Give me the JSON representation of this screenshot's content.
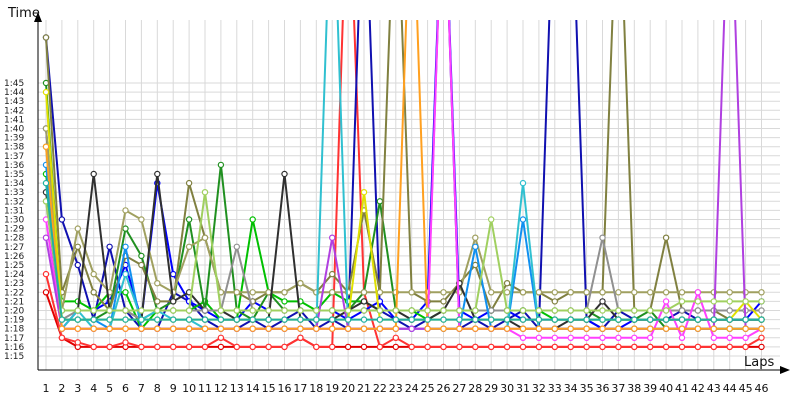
{
  "chart_data": {
    "type": "line",
    "xlabel": "Laps",
    "ylabel": "Time",
    "x": [
      1,
      2,
      3,
      4,
      5,
      6,
      7,
      8,
      9,
      10,
      11,
      12,
      13,
      14,
      15,
      16,
      17,
      18,
      19,
      20,
      21,
      22,
      23,
      24,
      25,
      26,
      27,
      28,
      29,
      30,
      31,
      32,
      33,
      34,
      35,
      36,
      37,
      38,
      39,
      40,
      41,
      42,
      43,
      44,
      45,
      46
    ],
    "y_ticks": [
      "1:15",
      "1:16",
      "1:17",
      "1:18",
      "1:19",
      "1:20",
      "1:21",
      "1:22",
      "1:23",
      "1:24",
      "1:25",
      "1:26",
      "1:27",
      "1:28",
      "1:29",
      "1:30",
      "1:31",
      "1:32",
      "1:33",
      "1:34",
      "1:35",
      "1:36",
      "1:37",
      "1:38",
      "1:39",
      "1:40",
      "1:41",
      "1:42",
      "1:43",
      "1:44",
      "1:45"
    ],
    "ylim_seconds": [
      74,
      110
    ],
    "grid": true,
    "series": [
      {
        "color": "#e00000",
        "values": [
          82,
          77,
          76,
          76,
          76,
          76,
          76,
          76,
          76,
          76,
          76,
          76,
          76,
          76,
          76,
          76,
          77,
          76,
          76,
          76,
          76,
          76,
          76,
          76,
          76,
          76,
          76,
          76,
          76,
          76,
          76,
          76,
          76,
          76,
          76,
          76,
          76,
          76,
          76,
          76,
          76,
          76,
          76,
          76,
          76,
          76
        ]
      },
      {
        "color": "#ff3333",
        "values": [
          84,
          77,
          76.5,
          76,
          76,
          76.5,
          76,
          76,
          76,
          76,
          76,
          77,
          76,
          76,
          76,
          76,
          77,
          76,
          76,
          130,
          82,
          76,
          77,
          76,
          76,
          76,
          76,
          76,
          76,
          76,
          76,
          76,
          76,
          76,
          76,
          76,
          76,
          76,
          76,
          76,
          76,
          76,
          76,
          76,
          76,
          77
        ]
      },
      {
        "color": "#1010b0",
        "values": [
          110,
          90,
          85,
          79,
          87,
          80,
          78,
          78,
          82,
          81,
          79,
          78,
          78,
          79,
          78,
          79,
          80,
          78,
          79,
          78,
          130,
          80,
          79,
          78,
          79,
          130,
          78,
          79,
          78,
          79,
          80,
          78,
          130,
          130,
          79,
          78,
          80,
          79,
          79,
          79,
          80,
          79,
          79,
          79,
          79,
          79
        ]
      },
      {
        "color": "#0000ff",
        "values": [
          100,
          78,
          80,
          80,
          81,
          85,
          79,
          94,
          84,
          81,
          80,
          79,
          79,
          81,
          80,
          80,
          80,
          80,
          80,
          79,
          80,
          81,
          79,
          79,
          81,
          130,
          80,
          79,
          80,
          80,
          79,
          79,
          79,
          79,
          79,
          78,
          78,
          79,
          79,
          79,
          79,
          79,
          79,
          79,
          79,
          81
        ]
      },
      {
        "color": "#00c000",
        "values": [
          95,
          81,
          81,
          80,
          82,
          82,
          78,
          80,
          80,
          80,
          81,
          79,
          79,
          90,
          82,
          81,
          81,
          80,
          82,
          81,
          81,
          80,
          80,
          80,
          79,
          80,
          80,
          80,
          80,
          80,
          80,
          80,
          79,
          79,
          79,
          79,
          79,
          79,
          79,
          79,
          79,
          79,
          79,
          79,
          79,
          79
        ]
      },
      {
        "color": "#209020",
        "values": [
          105,
          79,
          79,
          79,
          80,
          89,
          86,
          80,
          81,
          90,
          80,
          96,
          80,
          79,
          82,
          80,
          80,
          80,
          80,
          80,
          82,
          92,
          80,
          80,
          80,
          80,
          80,
          80,
          80,
          80,
          80,
          80,
          80,
          80,
          80,
          79,
          79,
          79,
          80,
          78,
          78,
          78,
          78,
          78,
          78,
          78
        ]
      },
      {
        "color": "#808040",
        "values": [
          110,
          82,
          87,
          82,
          80,
          86,
          85,
          81,
          81,
          94,
          88,
          82,
          82,
          81,
          82,
          82,
          83,
          82,
          84,
          82,
          91,
          82,
          130,
          82,
          81,
          81,
          83,
          85,
          80,
          83,
          82,
          82,
          81,
          82,
          82,
          82,
          130,
          80,
          80,
          88,
          80,
          80,
          80,
          79,
          79,
          79
        ]
      },
      {
        "color": "#a0a060",
        "values": [
          100,
          80,
          89,
          84,
          82,
          91,
          90,
          83,
          82,
          87,
          88,
          82,
          82,
          82,
          82,
          82,
          83,
          82,
          82,
          82,
          82,
          82,
          82,
          82,
          82,
          82,
          82,
          88,
          82,
          82,
          82,
          82,
          82,
          82,
          82,
          82,
          82,
          82,
          82,
          82,
          82,
          82,
          82,
          82,
          82,
          82
        ]
      },
      {
        "color": "#303030",
        "values": [
          93,
          80,
          80,
          95,
          80,
          80,
          79,
          95,
          81,
          82,
          80,
          80,
          79,
          79,
          79,
          95,
          79,
          79,
          79,
          80,
          81,
          80,
          80,
          79,
          79,
          80,
          83,
          79,
          79,
          79,
          78,
          78,
          78,
          79,
          79,
          81,
          79,
          79,
          79,
          79,
          79,
          79,
          79,
          79,
          79,
          79
        ]
      },
      {
        "color": "#909090",
        "values": [
          92,
          79,
          80,
          80,
          80,
          80,
          79,
          80,
          80,
          80,
          80,
          80,
          87,
          80,
          80,
          80,
          80,
          80,
          80,
          80,
          80,
          80,
          80,
          80,
          80,
          80,
          80,
          80,
          80,
          80,
          80,
          80,
          80,
          80,
          80,
          88,
          80,
          80,
          80,
          80,
          80,
          80,
          80,
          80,
          80,
          80
        ]
      },
      {
        "color": "#1090f0",
        "values": [
          96,
          79,
          79,
          79,
          78,
          87,
          78,
          78,
          78,
          78,
          78,
          78,
          78,
          78,
          78,
          78,
          78,
          78,
          78,
          78,
          78,
          78,
          78,
          78,
          78,
          78,
          78,
          87,
          78,
          78,
          90,
          78,
          78,
          78,
          78,
          78,
          78,
          78,
          78,
          78,
          78,
          78,
          78,
          78,
          78,
          78
        ]
      },
      {
        "color": "#30c0d0",
        "values": [
          98,
          78,
          80,
          78,
          78,
          84,
          79,
          80,
          79,
          79,
          78,
          78,
          78,
          78,
          78,
          78,
          78,
          78,
          130,
          78,
          78,
          78,
          78,
          78,
          78,
          78,
          78,
          78,
          78,
          78,
          94,
          78,
          78,
          78,
          78,
          78,
          78,
          78,
          78,
          78,
          78,
          78,
          78,
          78,
          78,
          78
        ]
      },
      {
        "color": "#ff40ff",
        "values": [
          90,
          78,
          78,
          78,
          78,
          78,
          78,
          78,
          78,
          78,
          78,
          78,
          78,
          78,
          78,
          78,
          78,
          78,
          78,
          78,
          78,
          78,
          78,
          78,
          78,
          130,
          78,
          78,
          78,
          78,
          77,
          77,
          77,
          77,
          77,
          77,
          77,
          77,
          77,
          81,
          77,
          82,
          77,
          77,
          77,
          78
        ]
      },
      {
        "color": "#b040e0",
        "values": [
          88,
          78,
          78,
          78,
          78,
          78,
          78,
          78,
          78,
          78,
          78,
          78,
          78,
          78,
          78,
          78,
          78,
          78,
          88,
          78,
          78,
          78,
          78,
          78,
          78,
          78,
          78,
          78,
          78,
          78,
          78,
          78,
          78,
          78,
          78,
          78,
          78,
          78,
          78,
          78,
          78,
          78,
          78,
          130,
          78,
          78
        ]
      },
      {
        "color": "#e0e000",
        "values": [
          104,
          79,
          79,
          79,
          79,
          79,
          79,
          79,
          79,
          79,
          79,
          79,
          79,
          79,
          79,
          79,
          79,
          79,
          79,
          79,
          93,
          79,
          79,
          79,
          79,
          79,
          79,
          79,
          79,
          79,
          79,
          79,
          79,
          79,
          79,
          79,
          79,
          79,
          79,
          79,
          79,
          79,
          79,
          79,
          81,
          79
        ]
      },
      {
        "color": "#ffa020",
        "values": [
          98,
          78,
          78,
          78,
          78,
          78,
          78,
          78,
          78,
          78,
          78,
          78,
          78,
          78,
          78,
          78,
          78,
          78,
          78,
          78,
          78,
          78,
          78,
          130,
          78,
          78,
          78,
          78,
          78,
          78,
          78,
          78,
          78,
          78,
          78,
          78,
          78,
          78,
          78,
          78,
          78,
          78,
          78,
          78,
          78,
          78
        ]
      },
      {
        "color": "#a0d060",
        "values": [
          92,
          80,
          80,
          80,
          80,
          80,
          80,
          80,
          80,
          80,
          93,
          80,
          80,
          80,
          80,
          80,
          80,
          80,
          80,
          80,
          80,
          80,
          80,
          80,
          80,
          80,
          80,
          80,
          90,
          80,
          80,
          80,
          80,
          80,
          80,
          80,
          80,
          80,
          80,
          80,
          81,
          81,
          81,
          81,
          81,
          81
        ]
      },
      {
        "color": "#20b0a0",
        "values": [
          94,
          79,
          79,
          79,
          79,
          79,
          79,
          79,
          79,
          79,
          79,
          79,
          79,
          79,
          79,
          79,
          79,
          79,
          79,
          79,
          79,
          79,
          79,
          79,
          79,
          79,
          79,
          79,
          79,
          79,
          79,
          79,
          79,
          79,
          79,
          79,
          79,
          79,
          79,
          79,
          79,
          79,
          79,
          79,
          79,
          79
        ]
      }
    ]
  }
}
